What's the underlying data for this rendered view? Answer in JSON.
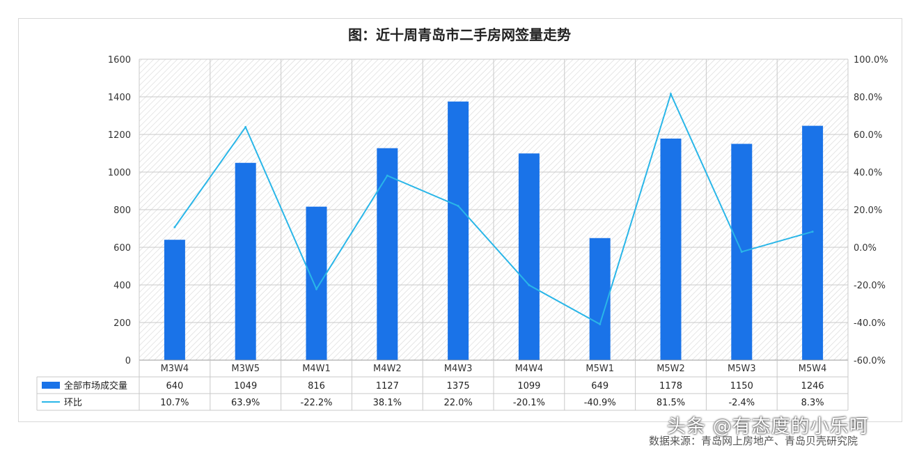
{
  "chart_data": {
    "type": "bar",
    "title": "图：近十周青岛市二手房网签量走势",
    "categories": [
      "M3W4",
      "M3W5",
      "M4W1",
      "M4W2",
      "M4W3",
      "M4W4",
      "M5W1",
      "M5W2",
      "M5W3",
      "M5W4"
    ],
    "series": [
      {
        "name": "全部市场成交量",
        "kind": "bar",
        "axis": "left",
        "color": "#1a73e8",
        "values": [
          640,
          1049,
          816,
          1127,
          1375,
          1099,
          649,
          1178,
          1150,
          1246
        ],
        "labels": [
          "640",
          "1049",
          "816",
          "1127",
          "1375",
          "1099",
          "649",
          "1178",
          "1150",
          "1246"
        ]
      },
      {
        "name": "环比",
        "kind": "line",
        "axis": "right",
        "color": "#29b6e8",
        "values": [
          10.7,
          63.9,
          -22.2,
          38.1,
          22.0,
          -20.1,
          -40.9,
          81.5,
          -2.4,
          8.3
        ],
        "labels": [
          "10.7%",
          "63.9%",
          "-22.2%",
          "38.1%",
          "22.0%",
          "-20.1%",
          "-40.9%",
          "81.5%",
          "-2.4%",
          "8.3%"
        ]
      }
    ],
    "y_left": {
      "min": 0,
      "max": 1600,
      "ticks": [
        "0",
        "200",
        "400",
        "600",
        "800",
        "1000",
        "1200",
        "1400",
        "1600"
      ]
    },
    "y_right": {
      "min": -60,
      "max": 100,
      "ticks": [
        "-60.0%",
        "-40.0%",
        "-20.0%",
        "0.0%",
        "20.0%",
        "40.0%",
        "60.0%",
        "80.0%",
        "100.0%"
      ]
    },
    "grid": true,
    "legend": "data-table-bottom"
  },
  "watermark": "头条 @有态度的小乐呵",
  "source": "数据来源：青岛网上房地产、青岛贝壳研究院"
}
